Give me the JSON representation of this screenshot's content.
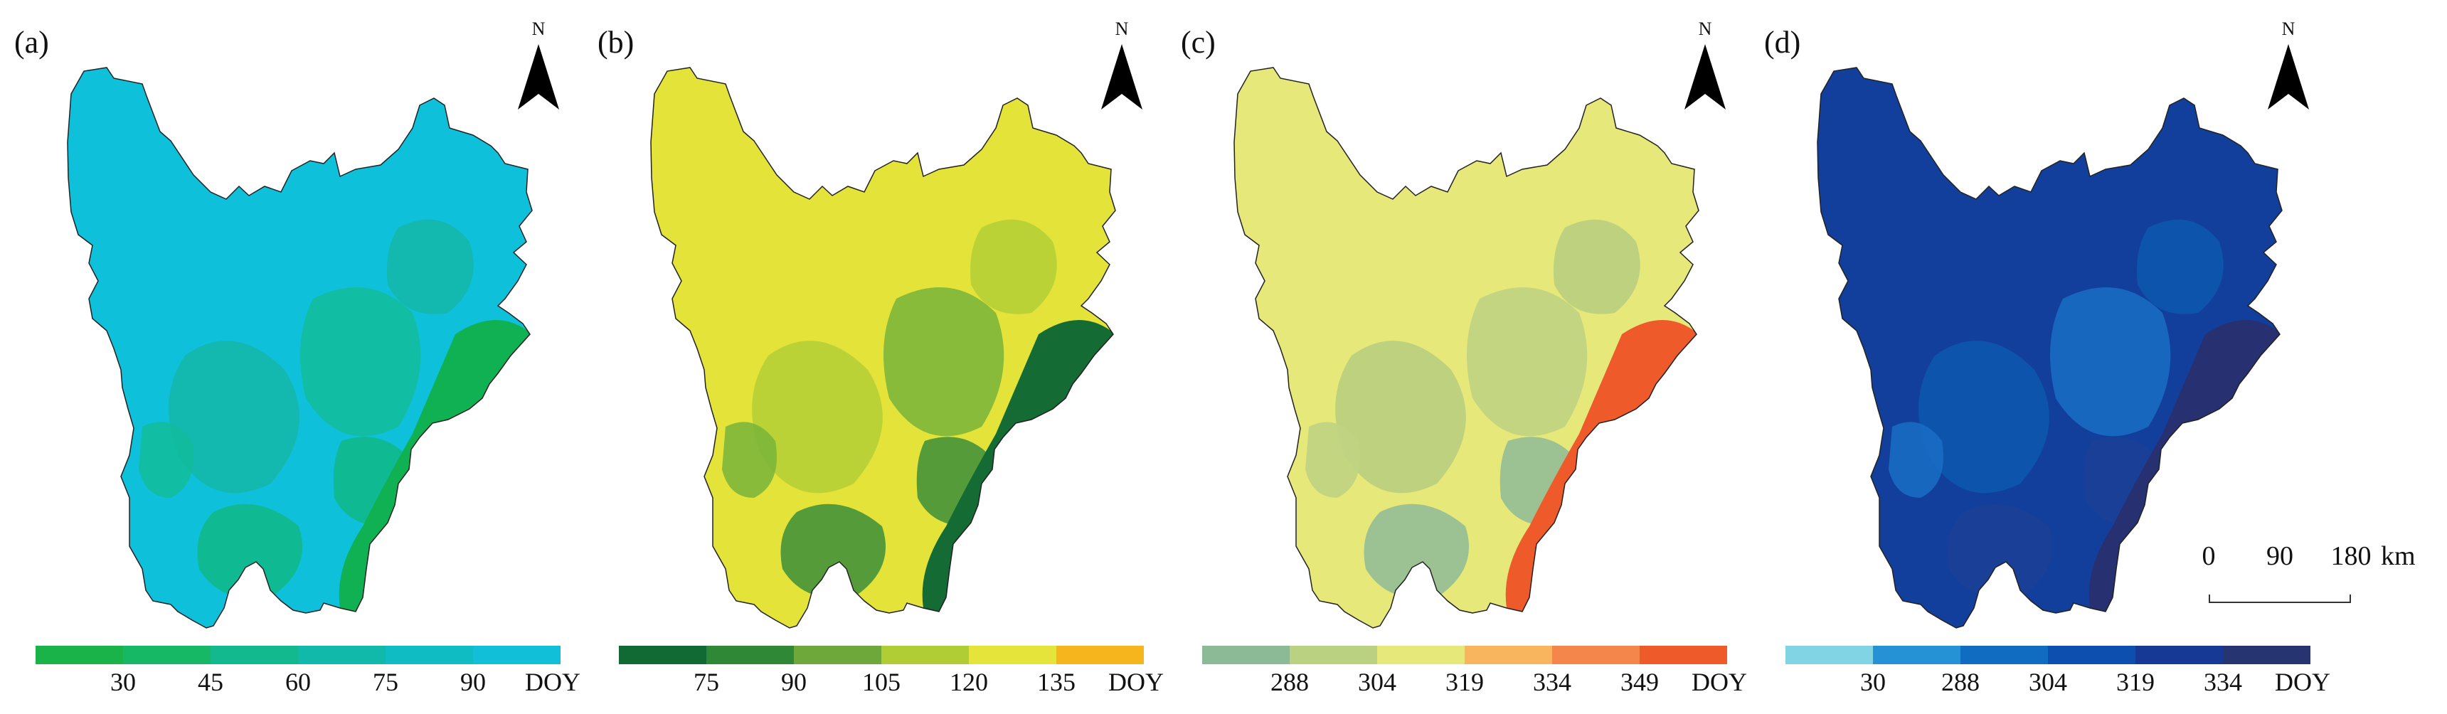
{
  "panels": [
    {
      "label": "(a)",
      "base_color": "#0ec0da",
      "blobs": [
        "#14b7a8",
        "#12bd9c",
        "#10b98a"
      ],
      "edge_color": "#0fb152",
      "legend_colors": [
        "#19b34a",
        "#16b765",
        "#12b88e",
        "#10b9a9",
        "#0fbcc3",
        "#11bfd9"
      ],
      "ticks": [
        "30",
        "45",
        "60",
        "75",
        "90"
      ],
      "unit": "DOY"
    },
    {
      "label": "(b)",
      "base_color": "#e3e33a",
      "blobs": [
        "#b6cf36",
        "#7db63a",
        "#46923a"
      ],
      "edge_color": "#146b34",
      "legend_colors": [
        "#116a33",
        "#2f8836",
        "#6ea83a",
        "#b1cd35",
        "#e5e43a",
        "#f6b41d"
      ],
      "ticks": [
        "75",
        "90",
        "105",
        "120",
        "135"
      ],
      "unit": "DOY"
    },
    {
      "label": "(c)",
      "base_color": "#e6e87a",
      "blobs": [
        "#b8ce80",
        "#c0d383",
        "#94bd95"
      ],
      "edge_color": "#ef5a2a",
      "legend_colors": [
        "#8cb996",
        "#b9d181",
        "#e6e87a",
        "#f9b55e",
        "#f5864b",
        "#ef5a2a"
      ],
      "ticks": [
        "288",
        "304",
        "319",
        "334",
        "349"
      ],
      "unit": "DOY"
    },
    {
      "label": "(d)",
      "base_color": "#123f9c",
      "blobs": [
        "#0d56ae",
        "#1a6cc3",
        "#1b3f96"
      ],
      "edge_color": "#273070",
      "legend_colors": [
        "#80d4e4",
        "#2492d5",
        "#0f6cc1",
        "#0d4fae",
        "#173996",
        "#263471"
      ],
      "ticks": [
        "30",
        "288",
        "304",
        "319",
        "334"
      ],
      "unit": "DOY"
    }
  ],
  "compass": {
    "letter": "N",
    "icon": "north-arrow-icon"
  },
  "scale": {
    "labels": [
      "0",
      "90",
      "180"
    ],
    "unit": "km"
  }
}
